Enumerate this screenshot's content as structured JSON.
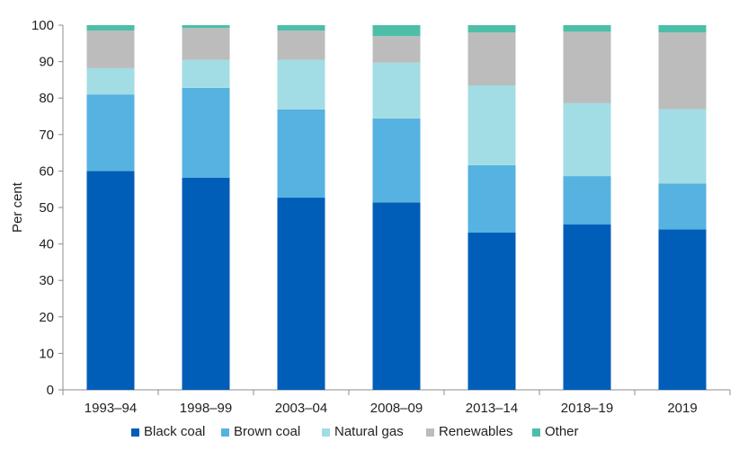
{
  "chart_data": {
    "type": "bar",
    "stacked": true,
    "categories": [
      "1993–94",
      "1998–99",
      "2003–04",
      "2008–09",
      "2013–14",
      "2018–19",
      "2019"
    ],
    "series": [
      {
        "name": "Black coal",
        "color": "#005eb8",
        "values": [
          60.0,
          58.2,
          52.7,
          51.4,
          43.1,
          45.4,
          44.0
        ]
      },
      {
        "name": "Brown coal",
        "color": "#56b2e0",
        "values": [
          21.0,
          24.6,
          24.2,
          23.0,
          18.5,
          13.2,
          12.6
        ]
      },
      {
        "name": "Natural gas",
        "color": "#a2dce4",
        "values": [
          7.2,
          7.7,
          13.6,
          15.3,
          21.9,
          20.0,
          20.4
        ]
      },
      {
        "name": "Renewables",
        "color": "#bcbcbd",
        "values": [
          10.3,
          8.7,
          8.0,
          7.3,
          14.5,
          19.6,
          21.0
        ]
      },
      {
        "name": "Other",
        "color": "#4dbfa8",
        "values": [
          1.5,
          0.8,
          1.5,
          3.0,
          2.0,
          1.8,
          2.0
        ]
      }
    ],
    "ylabel": "Per cent",
    "ylim": [
      0,
      100
    ],
    "yticks": [
      0,
      10,
      20,
      30,
      40,
      50,
      60,
      70,
      80,
      90,
      100
    ],
    "grid": false,
    "legend_position": "bottom"
  }
}
